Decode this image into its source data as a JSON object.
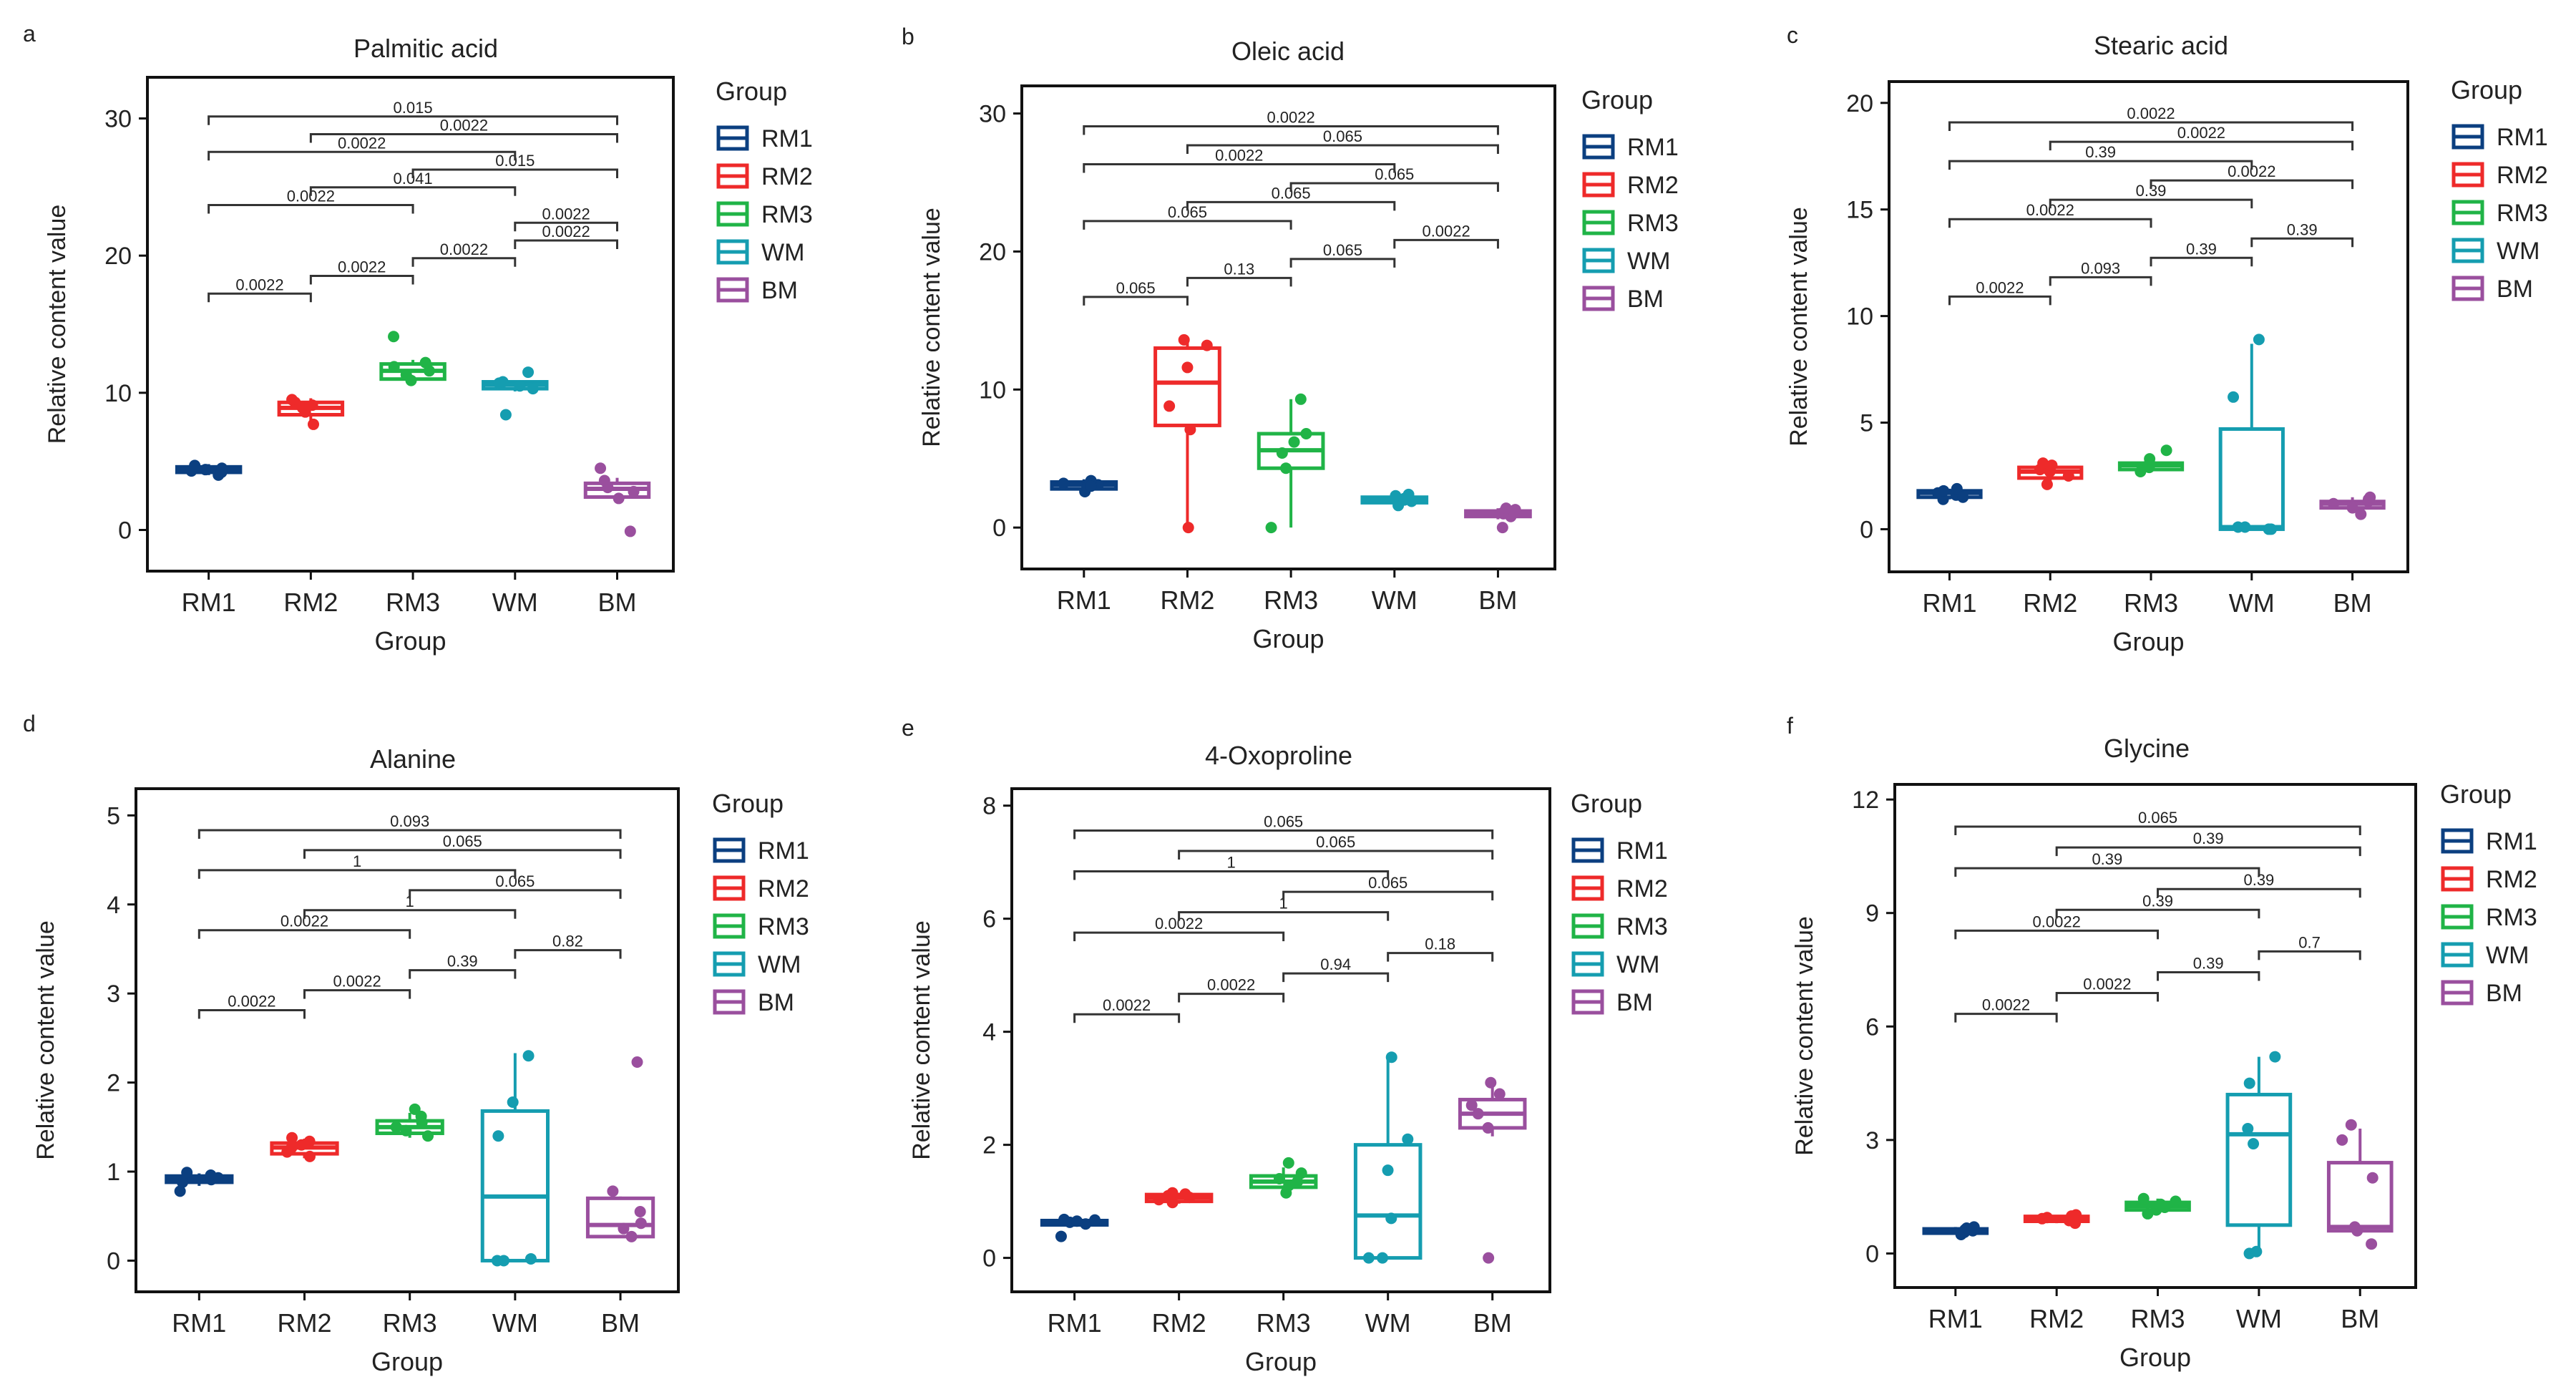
{
  "group_colors": {
    "RM1": "#0b3f80",
    "RM2": "#ee2a2a",
    "RM3": "#20b447",
    "WM": "#159db0",
    "BM": "#9a4f9e"
  },
  "chart_data": [
    {
      "panel": "a",
      "type": "box",
      "title": "Palmitic acid",
      "xlabel": "Group",
      "ylabel": "Relative content value",
      "categories": [
        "RM1",
        "RM2",
        "RM3",
        "WM",
        "BM"
      ],
      "ylim": [
        -3,
        33
      ],
      "yticks": [
        0,
        10,
        20,
        30
      ],
      "legend_title": "Group",
      "boxes": [
        {
          "q1": 4.2,
          "median": 4.4,
          "q3": 4.6,
          "wlo": 4.0,
          "whi": 4.8,
          "points": [
            4.0,
            4.3,
            4.4,
            4.5,
            4.7,
            4.2
          ]
        },
        {
          "q1": 8.4,
          "median": 8.9,
          "q3": 9.3,
          "wlo": 7.6,
          "whi": 9.6,
          "points": [
            7.7,
            8.6,
            8.9,
            9.1,
            9.3,
            9.5
          ]
        },
        {
          "q1": 11.0,
          "median": 11.6,
          "q3": 12.1,
          "wlo": 10.8,
          "whi": 12.4,
          "points": [
            10.9,
            11.3,
            11.6,
            11.9,
            12.2,
            14.1
          ]
        },
        {
          "q1": 10.3,
          "median": 10.6,
          "q3": 10.8,
          "wlo": 10.1,
          "whi": 10.9,
          "points": [
            8.4,
            10.3,
            10.5,
            10.7,
            10.8,
            11.5
          ]
        },
        {
          "q1": 2.4,
          "median": 3.0,
          "q3": 3.4,
          "wlo": 2.0,
          "whi": 3.8,
          "points": [
            -0.1,
            2.3,
            2.8,
            3.1,
            3.6,
            4.5
          ]
        }
      ],
      "comparisons": [
        {
          "a": 0,
          "b": 1,
          "label": "0.0022"
        },
        {
          "a": 0,
          "b": 2,
          "label": "0.0022"
        },
        {
          "a": 0,
          "b": 3,
          "label": "0.0022"
        },
        {
          "a": 0,
          "b": 4,
          "label": "0.015"
        },
        {
          "a": 1,
          "b": 2,
          "label": "0.0022"
        },
        {
          "a": 1,
          "b": 3,
          "label": "0.041"
        },
        {
          "a": 1,
          "b": 4,
          "label": "0.0022"
        },
        {
          "a": 2,
          "b": 3,
          "label": "0.0022"
        },
        {
          "a": 2,
          "b": 4,
          "label": "0.015"
        },
        {
          "a": 3,
          "b": 4,
          "label": "0.0022"
        },
        {
          "a": 3,
          "b": 4,
          "label": "0.0022"
        }
      ]
    },
    {
      "panel": "b",
      "type": "box",
      "title": "Oleic acid",
      "xlabel": "Group",
      "ylabel": "Relative content value",
      "categories": [
        "RM1",
        "RM2",
        "RM3",
        "WM",
        "BM"
      ],
      "ylim": [
        -3,
        32
      ],
      "yticks": [
        0,
        10,
        20,
        30
      ],
      "legend_title": "Group",
      "boxes": [
        {
          "q1": 2.8,
          "median": 3.1,
          "q3": 3.3,
          "wlo": 2.6,
          "whi": 3.5,
          "points": [
            2.6,
            2.9,
            3.1,
            3.2,
            3.4,
            3.0
          ]
        },
        {
          "q1": 7.4,
          "median": 10.5,
          "q3": 13.0,
          "wlo": 0.0,
          "whi": 13.5,
          "points": [
            0.0,
            7.1,
            8.8,
            11.6,
            13.2,
            13.6
          ]
        },
        {
          "q1": 4.3,
          "median": 5.6,
          "q3": 6.8,
          "wlo": 0.0,
          "whi": 9.3,
          "points": [
            0.0,
            4.3,
            5.4,
            6.2,
            6.8,
            9.3
          ]
        },
        {
          "q1": 1.8,
          "median": 2.0,
          "q3": 2.2,
          "wlo": 1.5,
          "whi": 2.4,
          "points": [
            1.6,
            1.9,
            2.0,
            2.1,
            2.3,
            2.4
          ]
        },
        {
          "q1": 0.8,
          "median": 1.0,
          "q3": 1.2,
          "wlo": 0.6,
          "whi": 1.4,
          "points": [
            0.0,
            0.8,
            1.0,
            1.1,
            1.3,
            1.4
          ]
        }
      ],
      "comparisons": [
        {
          "a": 0,
          "b": 1,
          "label": "0.065"
        },
        {
          "a": 0,
          "b": 2,
          "label": "0.065"
        },
        {
          "a": 0,
          "b": 3,
          "label": "0.0022"
        },
        {
          "a": 0,
          "b": 4,
          "label": "0.0022"
        },
        {
          "a": 1,
          "b": 2,
          "label": "0.13"
        },
        {
          "a": 1,
          "b": 3,
          "label": "0.065"
        },
        {
          "a": 1,
          "b": 4,
          "label": "0.065"
        },
        {
          "a": 2,
          "b": 3,
          "label": "0.065"
        },
        {
          "a": 2,
          "b": 4,
          "label": "0.065"
        },
        {
          "a": 3,
          "b": 4,
          "label": "0.0022"
        }
      ]
    },
    {
      "panel": "c",
      "type": "box",
      "title": "Stearic acid",
      "xlabel": "Group",
      "ylabel": "Relative content value",
      "categories": [
        "RM1",
        "RM2",
        "RM3",
        "WM",
        "BM"
      ],
      "ylim": [
        -2,
        21
      ],
      "yticks": [
        0,
        5,
        10,
        15,
        20
      ],
      "legend_title": "Group",
      "boxes": [
        {
          "q1": 1.5,
          "median": 1.7,
          "q3": 1.8,
          "wlo": 1.4,
          "whi": 1.9,
          "points": [
            1.4,
            1.6,
            1.7,
            1.8,
            1.9,
            1.5
          ]
        },
        {
          "q1": 2.4,
          "median": 2.7,
          "q3": 2.9,
          "wlo": 2.1,
          "whi": 3.1,
          "points": [
            2.1,
            2.5,
            2.7,
            2.8,
            3.0,
            3.1
          ]
        },
        {
          "q1": 2.8,
          "median": 3.0,
          "q3": 3.1,
          "wlo": 2.7,
          "whi": 3.3,
          "points": [
            2.7,
            2.9,
            3.0,
            3.1,
            3.3,
            3.7
          ]
        },
        {
          "q1": 0.0,
          "median": 0.1,
          "q3": 4.7,
          "wlo": 0.0,
          "whi": 8.7,
          "points": [
            0.0,
            0.0,
            0.1,
            0.1,
            6.2,
            8.9
          ]
        },
        {
          "q1": 1.0,
          "median": 1.2,
          "q3": 1.3,
          "wlo": 0.8,
          "whi": 1.5,
          "points": [
            0.7,
            1.0,
            1.2,
            1.3,
            1.4,
            1.5
          ]
        }
      ],
      "comparisons": [
        {
          "a": 0,
          "b": 1,
          "label": "0.0022"
        },
        {
          "a": 0,
          "b": 2,
          "label": "0.0022"
        },
        {
          "a": 0,
          "b": 3,
          "label": "0.39"
        },
        {
          "a": 0,
          "b": 4,
          "label": "0.0022"
        },
        {
          "a": 1,
          "b": 2,
          "label": "0.093"
        },
        {
          "a": 1,
          "b": 3,
          "label": "0.39"
        },
        {
          "a": 1,
          "b": 4,
          "label": "0.0022"
        },
        {
          "a": 2,
          "b": 3,
          "label": "0.39"
        },
        {
          "a": 2,
          "b": 4,
          "label": "0.0022"
        },
        {
          "a": 3,
          "b": 4,
          "label": "0.39"
        }
      ]
    },
    {
      "panel": "d",
      "type": "box",
      "title": "Alanine",
      "xlabel": "Group",
      "ylabel": "Relative content value",
      "categories": [
        "RM1",
        "RM2",
        "RM3",
        "WM",
        "BM"
      ],
      "ylim": [
        -0.35,
        5.3
      ],
      "yticks": [
        0,
        1,
        2,
        3,
        4,
        5
      ],
      "legend_title": "Group",
      "boxes": [
        {
          "q1": 0.88,
          "median": 0.92,
          "q3": 0.95,
          "wlo": 0.84,
          "whi": 0.98,
          "points": [
            0.78,
            0.88,
            0.91,
            0.93,
            0.96,
            0.99
          ]
        },
        {
          "q1": 1.2,
          "median": 1.27,
          "q3": 1.32,
          "wlo": 1.15,
          "whi": 1.37,
          "points": [
            1.17,
            1.22,
            1.27,
            1.3,
            1.34,
            1.38
          ]
        },
        {
          "q1": 1.43,
          "median": 1.5,
          "q3": 1.57,
          "wlo": 1.38,
          "whi": 1.66,
          "points": [
            1.4,
            1.46,
            1.5,
            1.55,
            1.62,
            1.7
          ]
        },
        {
          "q1": 0.0,
          "median": 0.72,
          "q3": 1.68,
          "wlo": 0.0,
          "whi": 2.33,
          "points": [
            0.0,
            0.02,
            1.4,
            1.78,
            2.3,
            0.0
          ]
        },
        {
          "q1": 0.27,
          "median": 0.4,
          "q3": 0.7,
          "wlo": 0.27,
          "whi": 0.72,
          "points": [
            0.27,
            0.36,
            0.42,
            0.55,
            0.78,
            2.23
          ]
        }
      ],
      "comparisons": [
        {
          "a": 0,
          "b": 1,
          "label": "0.0022"
        },
        {
          "a": 0,
          "b": 2,
          "label": "0.0022"
        },
        {
          "a": 0,
          "b": 3,
          "label": "1"
        },
        {
          "a": 0,
          "b": 4,
          "label": "0.093"
        },
        {
          "a": 1,
          "b": 2,
          "label": "0.0022"
        },
        {
          "a": 1,
          "b": 3,
          "label": "1"
        },
        {
          "a": 1,
          "b": 4,
          "label": "0.065"
        },
        {
          "a": 2,
          "b": 3,
          "label": "0.39"
        },
        {
          "a": 2,
          "b": 4,
          "label": "0.065"
        },
        {
          "a": 3,
          "b": 4,
          "label": "0.82"
        }
      ]
    },
    {
      "panel": "e",
      "type": "box",
      "title": "4-Oxoproline",
      "xlabel": "Group",
      "ylabel": "Relative content value",
      "categories": [
        "RM1",
        "RM2",
        "RM3",
        "WM",
        "BM"
      ],
      "ylim": [
        -0.6,
        8.3
      ],
      "yticks": [
        0,
        2,
        4,
        6,
        8
      ],
      "legend_title": "Group",
      "boxes": [
        {
          "q1": 0.6,
          "median": 0.63,
          "q3": 0.66,
          "wlo": 0.57,
          "whi": 0.68,
          "points": [
            0.38,
            0.6,
            0.63,
            0.65,
            0.67,
            0.68
          ]
        },
        {
          "q1": 1.0,
          "median": 1.07,
          "q3": 1.12,
          "wlo": 0.96,
          "whi": 1.15,
          "points": [
            0.98,
            1.03,
            1.07,
            1.1,
            1.13,
            1.15
          ]
        },
        {
          "q1": 1.25,
          "median": 1.35,
          "q3": 1.45,
          "wlo": 1.15,
          "whi": 1.6,
          "points": [
            1.15,
            1.28,
            1.35,
            1.4,
            1.5,
            1.68
          ]
        },
        {
          "q1": 0.0,
          "median": 0.75,
          "q3": 2.0,
          "wlo": 0.0,
          "whi": 3.55,
          "points": [
            0.0,
            0.0,
            1.55,
            2.1,
            3.55,
            0.7
          ]
        },
        {
          "q1": 2.3,
          "median": 2.55,
          "q3": 2.8,
          "wlo": 2.15,
          "whi": 3.05,
          "points": [
            0.0,
            2.3,
            2.55,
            2.7,
            2.9,
            3.1
          ]
        }
      ],
      "comparisons": [
        {
          "a": 0,
          "b": 1,
          "label": "0.0022"
        },
        {
          "a": 0,
          "b": 2,
          "label": "0.0022"
        },
        {
          "a": 0,
          "b": 3,
          "label": "1"
        },
        {
          "a": 0,
          "b": 4,
          "label": "0.065"
        },
        {
          "a": 1,
          "b": 2,
          "label": "0.0022"
        },
        {
          "a": 1,
          "b": 3,
          "label": "1"
        },
        {
          "a": 1,
          "b": 4,
          "label": "0.065"
        },
        {
          "a": 2,
          "b": 3,
          "label": "0.94"
        },
        {
          "a": 2,
          "b": 4,
          "label": "0.065"
        },
        {
          "a": 3,
          "b": 4,
          "label": "0.18"
        }
      ]
    },
    {
      "panel": "f",
      "type": "box",
      "title": "Glycine",
      "xlabel": "Group",
      "ylabel": "Relative content value",
      "categories": [
        "RM1",
        "RM2",
        "RM3",
        "WM",
        "BM"
      ],
      "ylim": [
        -0.9,
        12.4
      ],
      "yticks": [
        0,
        3,
        6,
        9,
        12
      ],
      "legend_title": "Group",
      "boxes": [
        {
          "q1": 0.55,
          "median": 0.6,
          "q3": 0.65,
          "wlo": 0.5,
          "whi": 0.7,
          "points": [
            0.5,
            0.56,
            0.6,
            0.63,
            0.67,
            0.7
          ]
        },
        {
          "q1": 0.85,
          "median": 0.92,
          "q3": 0.98,
          "wlo": 0.8,
          "whi": 1.02,
          "points": [
            0.8,
            0.87,
            0.92,
            0.95,
            0.99,
            1.02
          ]
        },
        {
          "q1": 1.15,
          "median": 1.25,
          "q3": 1.35,
          "wlo": 1.05,
          "whi": 1.45,
          "points": [
            1.05,
            1.15,
            1.22,
            1.3,
            1.38,
            1.45
          ]
        },
        {
          "q1": 0.75,
          "median": 3.15,
          "q3": 4.2,
          "wlo": 0.0,
          "whi": 5.2,
          "points": [
            0.0,
            0.05,
            2.9,
            3.3,
            4.5,
            5.2
          ]
        },
        {
          "q1": 0.6,
          "median": 0.7,
          "q3": 2.4,
          "wlo": 0.6,
          "whi": 3.3,
          "points": [
            0.25,
            0.6,
            0.7,
            2.0,
            3.0,
            3.4
          ]
        }
      ],
      "comparisons": [
        {
          "a": 0,
          "b": 1,
          "label": "0.0022"
        },
        {
          "a": 0,
          "b": 2,
          "label": "0.0022"
        },
        {
          "a": 0,
          "b": 3,
          "label": "0.39"
        },
        {
          "a": 0,
          "b": 4,
          "label": "0.065"
        },
        {
          "a": 1,
          "b": 2,
          "label": "0.0022"
        },
        {
          "a": 1,
          "b": 3,
          "label": "0.39"
        },
        {
          "a": 1,
          "b": 4,
          "label": "0.39"
        },
        {
          "a": 2,
          "b": 3,
          "label": "0.39"
        },
        {
          "a": 2,
          "b": 4,
          "label": "0.39"
        },
        {
          "a": 3,
          "b": 4,
          "label": "0.7"
        }
      ]
    }
  ]
}
